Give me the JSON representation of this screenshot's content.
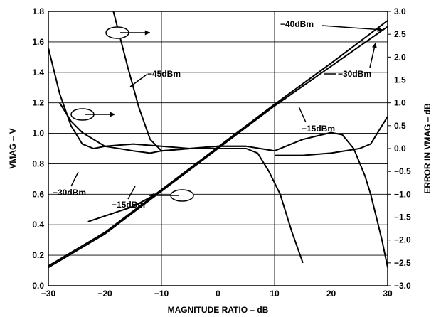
{
  "chart_data": {
    "type": "line",
    "title": "",
    "xlabel": "MAGNITUDE RATIO – dB",
    "ylabel_left": "VMAG – V",
    "ylabel_right": "ERROR IN VMAG – dB",
    "xlim": [
      -30,
      30
    ],
    "ylim_left": [
      0.0,
      1.8
    ],
    "ylim_right": [
      -3.0,
      3.0
    ],
    "grid": true,
    "x_ticks": [
      -30,
      -20,
      -10,
      0,
      10,
      20,
      30
    ],
    "y_left_ticks": [
      "0.0",
      "0.2",
      "0.4",
      "0.6",
      "0.8",
      "1.0",
      "1.2",
      "1.4",
      "1.6",
      "1.8"
    ],
    "y_right_ticks": [
      "−3.0",
      "−2.5",
      "−2.0",
      "−1.5",
      "−1.0",
      "−0.5",
      "0.0",
      "0.5",
      "1.0",
      "1.5",
      "2.0",
      "2.5",
      "3.0"
    ],
    "series": [
      {
        "name": "−30dBm",
        "axis": "left",
        "x": [
          -30,
          -20,
          -10,
          0,
          10,
          20,
          30
        ],
        "y": [
          0.12,
          0.34,
          0.62,
          0.9,
          1.18,
          1.44,
          1.7
        ]
      },
      {
        "name": "−40dBm",
        "axis": "left",
        "x": [
          -30,
          -20,
          -10,
          0,
          10,
          20,
          30
        ],
        "y": [
          0.13,
          0.35,
          0.63,
          0.91,
          1.19,
          1.46,
          1.74
        ]
      },
      {
        "name": "−15dBm",
        "axis": "left",
        "x": [
          -23,
          -15,
          -10,
          0,
          5,
          10,
          12
        ],
        "y": [
          0.42,
          0.52,
          0.62,
          0.91,
          1.05,
          1.19,
          1.23
        ]
      },
      {
        "name": "−45dBm",
        "axis": "right",
        "x": [
          -18.5,
          -16,
          -14,
          -12,
          -10,
          -5,
          0,
          5
        ],
        "y": [
          3.0,
          1.8,
          0.9,
          0.2,
          -0.05,
          0.0,
          0.05,
          0.05
        ]
      },
      {
        "name": "−30dBm",
        "axis": "right",
        "x": [
          -30,
          -28,
          -26,
          -24,
          -22,
          -20,
          -15,
          -10,
          -5,
          0,
          5,
          10,
          15,
          20,
          22,
          24,
          26,
          27,
          28,
          29,
          30
        ],
        "y": [
          2.2,
          1.2,
          0.5,
          0.1,
          0.0,
          0.05,
          0.1,
          0.05,
          0.0,
          0.05,
          0.05,
          -0.05,
          0.2,
          0.35,
          0.3,
          0.0,
          -0.6,
          -1.0,
          -1.5,
          -2.0,
          -2.6
        ]
      },
      {
        "name": "−15dBm",
        "axis": "right",
        "x": [
          -28,
          -26,
          -24,
          -22,
          -20,
          -15,
          -12,
          -10,
          -5,
          0,
          5,
          7,
          9,
          11,
          13,
          15
        ],
        "y": [
          1.0,
          0.6,
          0.35,
          0.2,
          0.05,
          -0.05,
          -0.1,
          -0.05,
          0.0,
          0.0,
          0.0,
          -0.1,
          -0.5,
          -1.0,
          -1.8,
          -2.5
        ]
      },
      {
        "name": "",
        "axis": "right",
        "x": [
          10,
          15,
          20,
          25,
          27,
          28,
          29,
          30
        ],
        "y": [
          -0.15,
          -0.15,
          -0.1,
          0.0,
          0.1,
          0.3,
          0.5,
          0.7
        ]
      }
    ],
    "labels": [
      "−40dBm",
      "−45dBm",
      "−30dBm",
      "−15dBm",
      "−30dBm",
      "−15dBm"
    ]
  }
}
